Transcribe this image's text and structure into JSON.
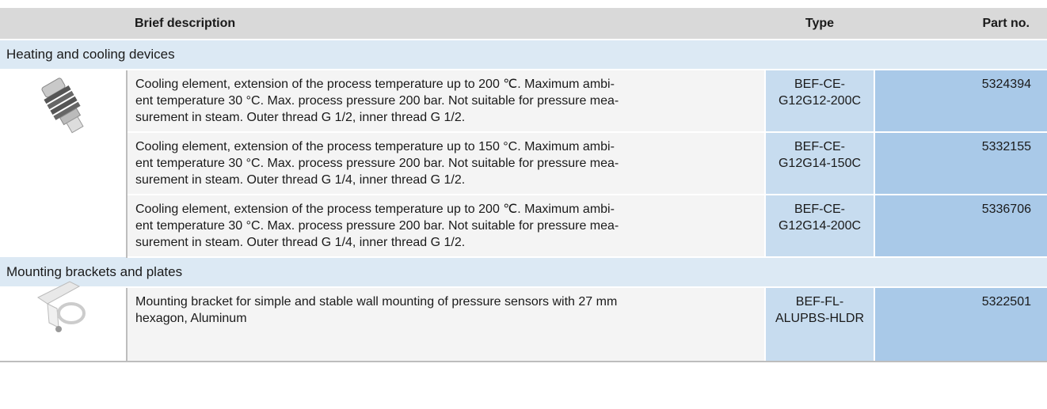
{
  "header": {
    "description": "Brief description",
    "type": "Type",
    "part_no": "Part no."
  },
  "groups": [
    {
      "title": "Heating and cooling devices",
      "rows": [
        {
          "description": [
            "Cooling element, extension of the process temperature up to 200 ℃. Maximum ambi-",
            "ent temperature 30 °C. Max. process pressure 200 bar. Not suitable for pressure mea-",
            "surement in steam. Outer thread G 1/2, inner thread G 1/2."
          ],
          "type": [
            "BEF-CE-",
            "G12G12-200C"
          ],
          "part_no": "5324394"
        },
        {
          "description": [
            "Cooling element, extension of the process temperature up to 150 °C. Maximum ambi-",
            "ent temperature 30 °C. Max. process pressure 200 bar. Not suitable for pressure mea-",
            "surement in steam. Outer thread G 1/4, inner thread G 1/2."
          ],
          "type": [
            "BEF-CE-",
            "G12G14-150C"
          ],
          "part_no": "5332155"
        },
        {
          "description": [
            "Cooling element, extension of the process temperature up to 200 ℃. Maximum ambi-",
            "ent temperature 30 °C. Max. process pressure 200 bar. Not suitable for pressure mea-",
            "surement in steam. Outer thread G 1/4, inner thread G 1/2."
          ],
          "type": [
            "BEF-CE-",
            "G12G14-200C"
          ],
          "part_no": "5336706"
        }
      ]
    },
    {
      "title": "Mounting brackets and plates",
      "rows": [
        {
          "description": [
            "Mounting bracket for simple and stable wall mounting of pressure sensors with 27 mm",
            "hexagon, Aluminum"
          ],
          "type": [
            "BEF-FL-ALUPBS-HLDR"
          ],
          "part_no": "5322501"
        }
      ]
    }
  ]
}
